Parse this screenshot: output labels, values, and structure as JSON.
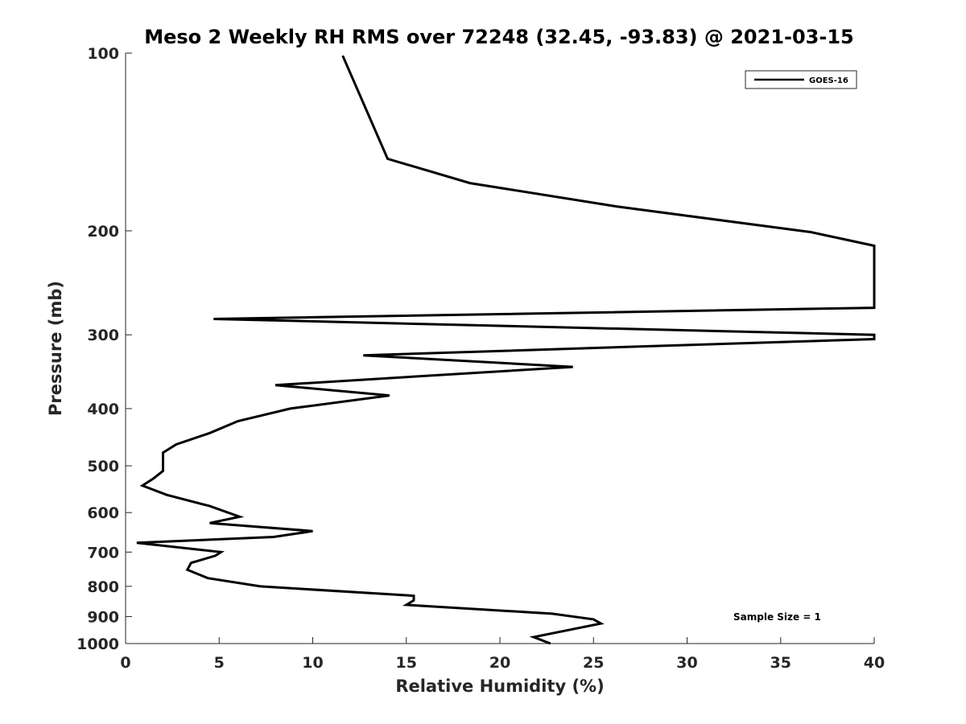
{
  "chart_data": {
    "type": "line",
    "title": "Meso 2 Weekly RH RMS over 72248 (32.45, -93.83) @ 2021-03-15",
    "xlabel": "Relative Humidity (%)",
    "ylabel": "Pressure (mb)",
    "xlim": [
      0,
      40
    ],
    "ylim": [
      100,
      1000
    ],
    "y_scale": "log",
    "y_direction": "reversed",
    "x_ticks": [
      0,
      5,
      10,
      15,
      20,
      25,
      30,
      35,
      40
    ],
    "y_ticks": [
      100,
      200,
      300,
      400,
      500,
      600,
      700,
      800,
      900,
      1000
    ],
    "grid": false,
    "legend_position": "top-right",
    "annotation": "Sample Size = 1",
    "series": [
      {
        "name": "GOES-16",
        "color": "#000000",
        "points": [
          [
            22.7,
            1000
          ],
          [
            21.8,
            975
          ],
          [
            25.4,
            925
          ],
          [
            25.0,
            910
          ],
          [
            22.8,
            890
          ],
          [
            15.0,
            860
          ],
          [
            15.4,
            845
          ],
          [
            15.4,
            830
          ],
          [
            7.2,
            800
          ],
          [
            4.4,
            775
          ],
          [
            3.3,
            750
          ],
          [
            3.5,
            730
          ],
          [
            4.8,
            710
          ],
          [
            5.1,
            700
          ],
          [
            0.6,
            675
          ],
          [
            7.9,
            660
          ],
          [
            10.0,
            645
          ],
          [
            4.5,
            625
          ],
          [
            6.1,
            610
          ],
          [
            4.5,
            585
          ],
          [
            2.2,
            560
          ],
          [
            0.9,
            540
          ],
          [
            1.5,
            525
          ],
          [
            2.0,
            510
          ],
          [
            2.0,
            495
          ],
          [
            2.0,
            475
          ],
          [
            2.7,
            460
          ],
          [
            4.5,
            440
          ],
          [
            6.0,
            420
          ],
          [
            8.8,
            400
          ],
          [
            14.1,
            380
          ],
          [
            8.0,
            365
          ],
          [
            23.9,
            340
          ],
          [
            12.7,
            325
          ],
          [
            40.0,
            305
          ],
          [
            40.0,
            300
          ],
          [
            4.7,
            282
          ],
          [
            40.0,
            270
          ],
          [
            40.0,
            212
          ],
          [
            36.6,
            201
          ],
          [
            26.3,
            182
          ],
          [
            18.4,
            166
          ],
          [
            14.0,
            151
          ],
          [
            11.6,
            101
          ]
        ]
      }
    ]
  }
}
